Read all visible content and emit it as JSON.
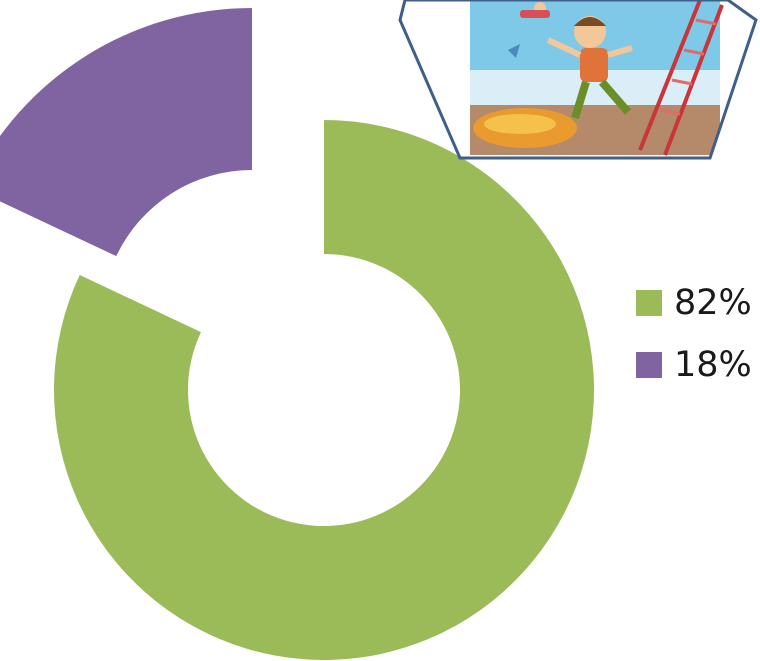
{
  "chart_data": {
    "type": "pie",
    "title": "",
    "categories": [
      "82%",
      "18%"
    ],
    "values": [
      82,
      18
    ],
    "colors": [
      "#9bbb59",
      "#8064a2"
    ],
    "legend_position": "right"
  },
  "legend": {
    "items": [
      {
        "label": "82%",
        "color": "#9bbb59"
      },
      {
        "label": "18%",
        "color": "#8064a2"
      }
    ]
  },
  "illustration": {
    "icon": "cartoon-boy-climbing-ladder-image",
    "frame_color": "#3f5f89"
  }
}
